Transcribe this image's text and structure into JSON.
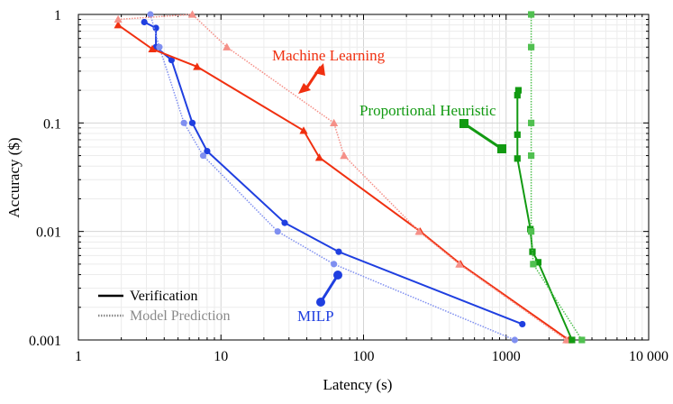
{
  "chart_data": {
    "type": "line",
    "xscale": "log",
    "yscale": "log",
    "xlabel": "Latency (s)",
    "ylabel": "Accuracy ($)",
    "xlim": [
      1,
      10000
    ],
    "ylim": [
      0.001,
      1
    ],
    "grid": true,
    "xticks": [
      {
        "value": 1,
        "label": "1"
      },
      {
        "value": 10,
        "label": "10"
      },
      {
        "value": 100,
        "label": "100"
      },
      {
        "value": 1000,
        "label": "1000"
      },
      {
        "value": 10000,
        "label": "10 000"
      }
    ],
    "yticks": [
      {
        "value": 1,
        "label": "1"
      },
      {
        "value": 0.1,
        "label": "0.1"
      },
      {
        "value": 0.01,
        "label": "0.01"
      },
      {
        "value": 0.001,
        "label": "0.001"
      }
    ],
    "series": [
      {
        "name": "MILP",
        "kind": "Verification",
        "color": "#1f3fe0",
        "marker": "circle",
        "style": "solid",
        "points": [
          [
            2.9,
            0.85
          ],
          [
            3.5,
            0.75
          ],
          [
            3.5,
            0.5
          ],
          [
            4.5,
            0.38
          ],
          [
            6.3,
            0.1
          ],
          [
            8,
            0.055
          ],
          [
            28,
            0.012
          ],
          [
            67,
            0.0065
          ],
          [
            1300,
            0.0014
          ]
        ]
      },
      {
        "name": "MILP",
        "kind": "Model Prediction",
        "color": "#7f8ff0",
        "marker": "circle",
        "style": "dotted",
        "points": [
          [
            3.2,
            1
          ],
          [
            3.7,
            0.5
          ],
          [
            5.5,
            0.1
          ],
          [
            7.5,
            0.05
          ],
          [
            25,
            0.01
          ],
          [
            62,
            0.005
          ],
          [
            1150,
            0.001
          ]
        ]
      },
      {
        "name": "Machine Learning",
        "kind": "Verification",
        "color": "#f03010",
        "marker": "triangle",
        "style": "solid",
        "points": [
          [
            1.9,
            0.8
          ],
          [
            3.3,
            0.48
          ],
          [
            6.8,
            0.33
          ],
          [
            38,
            0.085
          ],
          [
            49,
            0.048
          ],
          [
            250,
            0.01
          ],
          [
            480,
            0.005
          ],
          [
            2750,
            0.001
          ]
        ]
      },
      {
        "name": "Machine Learning",
        "kind": "Model Prediction",
        "color": "#f59088",
        "marker": "triangle",
        "style": "dotted",
        "points": [
          [
            1.9,
            0.9
          ],
          [
            6.3,
            1
          ],
          [
            11,
            0.5
          ],
          [
            62,
            0.1
          ],
          [
            73,
            0.05
          ],
          [
            245,
            0.01
          ],
          [
            470,
            0.005
          ],
          [
            2650,
            0.001
          ]
        ]
      },
      {
        "name": "Proportional Heuristic",
        "kind": "Verification",
        "color": "#129a12",
        "marker": "square",
        "style": "solid",
        "points": [
          [
            1220,
            0.2
          ],
          [
            1200,
            0.18
          ],
          [
            1200,
            0.078
          ],
          [
            1200,
            0.047
          ],
          [
            1480,
            0.0105
          ],
          [
            1530,
            0.0065
          ],
          [
            1680,
            0.0052
          ],
          [
            2900,
            0.001
          ]
        ]
      },
      {
        "name": "Proportional Heuristic",
        "kind": "Model Prediction",
        "color": "#50c050",
        "marker": "square",
        "style": "dotted",
        "points": [
          [
            1500,
            1
          ],
          [
            1500,
            0.5
          ],
          [
            1500,
            0.1
          ],
          [
            1500,
            0.05
          ],
          [
            1500,
            0.01
          ],
          [
            1550,
            0.005
          ],
          [
            3400,
            0.001
          ]
        ]
      }
    ],
    "annotations": [
      {
        "text": "Machine Learning",
        "color": "#f03010"
      },
      {
        "text": "Proportional Heuristic",
        "color": "#129a12"
      },
      {
        "text": "MILP",
        "color": "#1f3fe0"
      }
    ],
    "legend": {
      "position": "bottom-left",
      "entries": [
        {
          "label": "Verification",
          "color": "#000000",
          "style": "solid"
        },
        {
          "label": "Model Prediction",
          "color": "#8a8a8a",
          "style": "dotted"
        }
      ]
    }
  }
}
